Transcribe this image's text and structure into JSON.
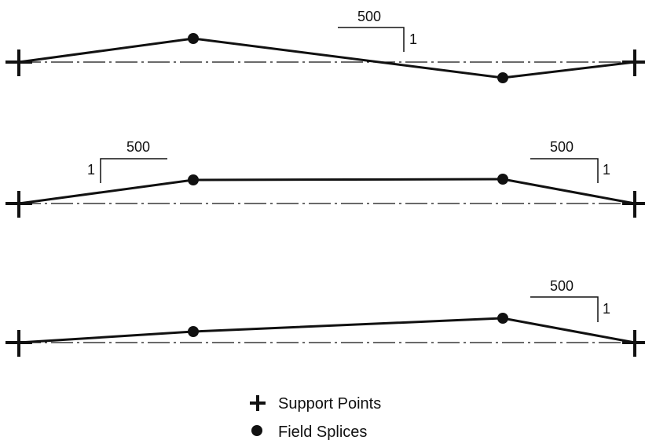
{
  "diagrams": [
    {
      "name": "profile-1",
      "slopes": [
        {
          "run": "500",
          "rise": "1"
        }
      ]
    },
    {
      "name": "profile-2",
      "slopes": [
        {
          "run": "500",
          "rise": "1"
        },
        {
          "run": "500",
          "rise": "1"
        }
      ]
    },
    {
      "name": "profile-3",
      "slopes": [
        {
          "run": "500",
          "rise": "1"
        }
      ]
    }
  ],
  "legend": {
    "support_points": "Support Points",
    "field_splices": "Field Splices"
  },
  "colors": {
    "ink": "#111111"
  },
  "icons": {
    "support_point": "plus-icon",
    "field_splice": "filled-dot-icon"
  }
}
